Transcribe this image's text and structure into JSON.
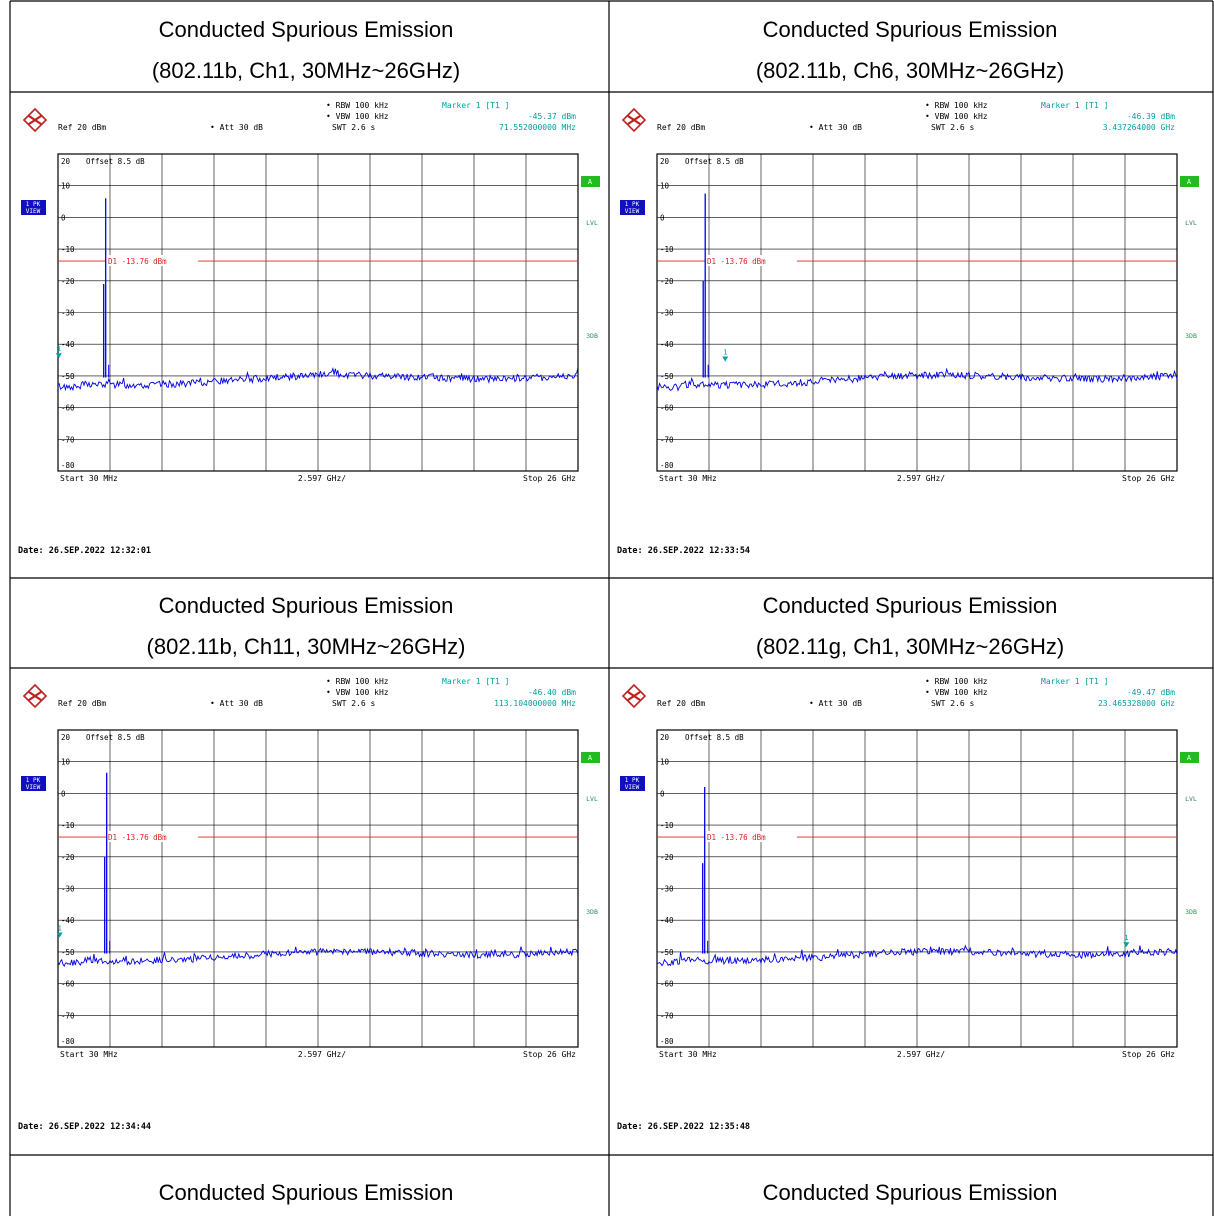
{
  "tables": [
    {
      "title_line1": "Conducted Spurious Emission",
      "title_line2": "(802.11b, Ch1, 30MHz~26GHz)"
    },
    {
      "title_line1": "Conducted Spurious Emission",
      "title_line2": "(802.11b, Ch6, 30MHz~26GHz)"
    },
    {
      "title_line1": "Conducted Spurious Emission",
      "title_line2": "(802.11b, Ch11, 30MHz~26GHz)"
    },
    {
      "title_line1": "Conducted Spurious Emission",
      "title_line2": "(802.11g, Ch1, 30MHz~26GHz)"
    },
    {
      "title_line1": "Conducted Spurious Emission",
      "title_line2": ""
    },
    {
      "title_line1": "Conducted Spurious Emission",
      "title_line2": ""
    }
  ],
  "colors": {
    "trace": "#0000e6",
    "limit": "#e02020",
    "grid": "#000000",
    "label": "#2e8b57",
    "marker_text": "#00a0a0",
    "badge": "#1010c0",
    "a_badge": "#22bb22"
  },
  "chart_data": [
    {
      "type": "line",
      "header": {
        "rbw": "RBW 100 kHz",
        "vbw": "VBW 100 kHz",
        "swt": "SWT 2.6 s",
        "ref": "Ref  20 dBm",
        "att": "Att  30 dB",
        "marker": "Marker 1 [T1 ]",
        "marker_level": "-45.37 dBm",
        "marker_freq": "71.552000000 MHz"
      },
      "offset": "Offset   8.5 dB",
      "line_label": "D1 -13.76 dBm",
      "badge": "1 PK VIEW",
      "side_a": "A",
      "side_lvl": "LVL",
      "side_3db": "3DB",
      "start": "Start  30 MHz",
      "span": "2.597 GHz/",
      "stop": "Stop  26 GHz",
      "date": "Date:  26.SEP.2022  12:32:01",
      "yticks": [
        "20",
        "10",
        "0",
        "-10",
        "-20",
        "-30",
        "-40",
        "-50",
        "-60",
        "-70",
        "-80"
      ],
      "ylim": [
        -80,
        20
      ],
      "xlim": [
        0.03,
        26
      ],
      "limit": -13.76,
      "noise": [
        -50.5,
        -52.5,
        -49.5
      ],
      "peaks": [
        {
          "x": 2.412,
          "y": 6.0,
          "sub": -21.0
        }
      ],
      "marker_point": {
        "x": 0.0716,
        "y": -45.37
      }
    },
    {
      "type": "line",
      "header": {
        "rbw": "RBW 100 kHz",
        "vbw": "VBW 100 kHz",
        "swt": "SWT 2.6 s",
        "ref": "Ref  20 dBm",
        "att": "Att  30 dB",
        "marker": "Marker 1 [T1 ]",
        "marker_level": "-46.39 dBm",
        "marker_freq": "3.437264000 GHz"
      },
      "offset": "Offset   8.5 dB",
      "line_label": "D1 -13.76 dBm",
      "badge": "1 PK VIEW",
      "side_a": "A",
      "side_lvl": "LVL",
      "side_3db": "3DB",
      "start": "Start  30 MHz",
      "span": "2.597 GHz/",
      "stop": "Stop  26 GHz",
      "date": "Date:  26.SEP.2022  12:33:54",
      "yticks": [
        "20",
        "10",
        "0",
        "-10",
        "-20",
        "-30",
        "-40",
        "-50",
        "-60",
        "-70",
        "-80"
      ],
      "ylim": [
        -80,
        20
      ],
      "xlim": [
        0.03,
        26
      ],
      "limit": -13.76,
      "noise": [
        -50.5,
        -52.5,
        -49.5
      ],
      "peaks": [
        {
          "x": 2.437,
          "y": 7.5,
          "sub": -20.0
        }
      ],
      "marker_point": {
        "x": 3.437,
        "y": -46.39
      }
    },
    {
      "type": "line",
      "header": {
        "rbw": "RBW 100 kHz",
        "vbw": "VBW 100 kHz",
        "swt": "SWT 2.6 s",
        "ref": "Ref  20 dBm",
        "att": "Att  30 dB",
        "marker": "Marker 1 [T1 ]",
        "marker_level": "-46.40 dBm",
        "marker_freq": "113.104000000 MHz"
      },
      "offset": "Offset   8.5 dB",
      "line_label": "D1 -13.76 dBm",
      "badge": "1 PK VIEW",
      "side_a": "A",
      "side_lvl": "LVL",
      "side_3db": "3DB",
      "start": "Start  30 MHz",
      "span": "2.597 GHz/",
      "stop": "Stop  26 GHz",
      "date": "Date:  26.SEP.2022  12:34:44",
      "yticks": [
        "20",
        "10",
        "0",
        "-10",
        "-20",
        "-30",
        "-40",
        "-50",
        "-60",
        "-70",
        "-80"
      ],
      "ylim": [
        -80,
        20
      ],
      "xlim": [
        0.03,
        26
      ],
      "limit": -13.76,
      "noise": [
        -50.5,
        -52.5,
        -49.5
      ],
      "peaks": [
        {
          "x": 2.462,
          "y": 6.5,
          "sub": -20.0
        }
      ],
      "marker_point": {
        "x": 0.113,
        "y": -46.4
      }
    },
    {
      "type": "line",
      "header": {
        "rbw": "RBW 100 kHz",
        "vbw": "VBW 100 kHz",
        "swt": "SWT 2.6 s",
        "ref": "Ref  20 dBm",
        "att": "Att  30 dB",
        "marker": "Marker 1 [T1 ]",
        "marker_level": "-49.47 dBm",
        "marker_freq": "23.465328000 GHz"
      },
      "offset": "Offset   8.5 dB",
      "line_label": "D1 -13.76 dBm",
      "badge": "1 PK VIEW",
      "side_a": "A",
      "side_lvl": "LVL",
      "side_3db": "3DB",
      "start": "Start  30 MHz",
      "span": "2.597 GHz/",
      "stop": "Stop  26 GHz",
      "date": "Date:  26.SEP.2022  12:35:48",
      "yticks": [
        "20",
        "10",
        "0",
        "-10",
        "-20",
        "-30",
        "-40",
        "-50",
        "-60",
        "-70",
        "-80"
      ],
      "ylim": [
        -80,
        20
      ],
      "xlim": [
        0.03,
        26
      ],
      "limit": -13.76,
      "noise": [
        -50.5,
        -52.5,
        -49.5
      ],
      "peaks": [
        {
          "x": 2.412,
          "y": 2.0,
          "sub": -22.0
        }
      ],
      "marker_point": {
        "x": 23.465,
        "y": -49.47
      }
    }
  ]
}
